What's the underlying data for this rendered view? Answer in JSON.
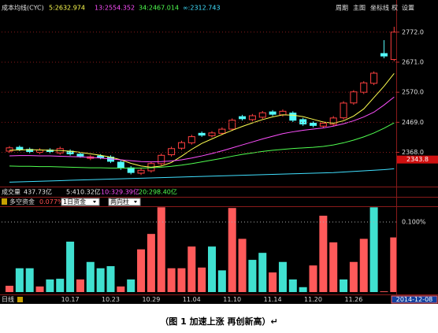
{
  "caption": "（图 1 加速上涨 再创新高）↵",
  "volume_row": {
    "title": "成交量",
    "items": [
      {
        "text": "437.73亿",
        "color": "#e8e8e8"
      },
      {
        "text": "5:410.32亿",
        "color": "#e8e8e8"
      },
      {
        "text": "10:329.39亿",
        "color": "#ff50ff"
      },
      {
        "text": "20:298.40亿",
        "color": "#50ff50"
      }
    ]
  },
  "chart_data": [
    {
      "type": "candlestick",
      "title": "成本均线(CYC)",
      "buttons": [
        "周期",
        "主图",
        "坐标线",
        "权",
        "设置"
      ],
      "open": [
        2372,
        2385,
        2378,
        2368,
        2376,
        2366,
        2372,
        2362,
        2348,
        2356,
        2352,
        2335,
        2316,
        2298,
        2306,
        2330,
        2360,
        2382,
        2400,
        2432,
        2424,
        2432,
        2446,
        2488,
        2478,
        2486,
        2504,
        2494,
        2500,
        2478,
        2466,
        2456,
        2462,
        2484,
        2534,
        2570,
        2600,
        2700,
        2680
      ],
      "high": [
        2389,
        2391,
        2384,
        2382,
        2382,
        2387,
        2378,
        2368,
        2359,
        2362,
        2358,
        2341,
        2322,
        2314,
        2336,
        2364,
        2387,
        2407,
        2427,
        2438,
        2439,
        2452,
        2482,
        2494,
        2497,
        2507,
        2510,
        2512,
        2506,
        2484,
        2472,
        2472,
        2490,
        2540,
        2577,
        2607,
        2640,
        2745,
        2790
      ],
      "low": [
        2366,
        2372,
        2365,
        2362,
        2365,
        2360,
        2357,
        2350,
        2342,
        2345,
        2332,
        2309,
        2294,
        2292,
        2300,
        2324,
        2354,
        2376,
        2394,
        2420,
        2418,
        2426,
        2440,
        2475,
        2472,
        2480,
        2490,
        2488,
        2470,
        2457,
        2452,
        2450,
        2456,
        2478,
        2528,
        2564,
        2594,
        2684,
        2674
      ],
      "close": [
        2383.1,
        2378.1,
        2370.6,
        2375.6,
        2370.6,
        2380.6,
        2363,
        2355.5,
        2353,
        2350.5,
        2337.9,
        2315.4,
        2300.3,
        2307.8,
        2330.4,
        2358,
        2380.6,
        2400.7,
        2420.7,
        2425.8,
        2433.3,
        2445.8,
        2475.9,
        2481,
        2491,
        2501,
        2496,
        2506,
        2475.9,
        2463.4,
        2458.4,
        2465.9,
        2483.5,
        2533.6,
        2571.3,
        2601.4,
        2634,
        2691.7,
        2772
      ],
      "up_color": "#ff4040",
      "down_color": "#54fcfc",
      "series": [
        {
          "name": "5:2632.974",
          "color": "#ffff50",
          "values": [
            2375,
            2376,
            2377,
            2376,
            2375,
            2374,
            2372,
            2368,
            2363,
            2358,
            2352,
            2343,
            2331,
            2322,
            2318,
            2322,
            2334,
            2355,
            2378,
            2398,
            2413,
            2428,
            2442,
            2455,
            2467,
            2478,
            2487,
            2494,
            2493,
            2488,
            2479,
            2470,
            2466,
            2474,
            2490,
            2514,
            2552,
            2590,
            2633
          ]
        },
        {
          "name": "13:2554.352",
          "color": "#ff50ff",
          "values": [
            2356,
            2357,
            2357,
            2356,
            2356,
            2355,
            2354,
            2353,
            2351,
            2349,
            2346,
            2343,
            2340,
            2337,
            2336,
            2337,
            2339,
            2343,
            2349,
            2356,
            2364,
            2373,
            2383,
            2393,
            2403,
            2413,
            2422,
            2431,
            2437,
            2442,
            2446,
            2450,
            2456,
            2464,
            2474,
            2487,
            2503,
            2527,
            2554
          ]
        },
        {
          "name": "34:2467.014",
          "color": "#50ff50",
          "values": [
            2322,
            2321,
            2321,
            2320,
            2320,
            2319,
            2318,
            2317,
            2316,
            2316,
            2315,
            2315,
            2315,
            2315,
            2316,
            2318,
            2321,
            2325,
            2330,
            2336,
            2342,
            2348,
            2355,
            2361,
            2366,
            2371,
            2375,
            2378,
            2381,
            2383,
            2385,
            2388,
            2393,
            2400,
            2409,
            2420,
            2433,
            2449,
            2467
          ]
        },
        {
          "name": "∞:2312.743",
          "color": "#40e0ff",
          "values": [
            2268,
            2269,
            2270,
            2271,
            2272,
            2273,
            2274,
            2275,
            2276,
            2277,
            2278,
            2279,
            2280,
            2281,
            2282,
            2283,
            2284,
            2285,
            2286,
            2287,
            2288,
            2289,
            2290,
            2291,
            2292,
            2293,
            2294,
            2295,
            2296,
            2297,
            2298,
            2299,
            2300,
            2302,
            2304,
            2306,
            2308,
            2310,
            2313
          ]
        }
      ],
      "ylim": [
        2253,
        2827
      ],
      "yticks": [
        {
          "value": 2368,
          "label": "2368.0"
        },
        {
          "value": 2469,
          "label": "2469.0"
        },
        {
          "value": 2570,
          "label": "2570.0"
        },
        {
          "value": 2671,
          "label": "2671.0"
        },
        {
          "value": 2772,
          "label": "2772.0"
        }
      ],
      "cursor_price": 2343.8,
      "grid": true
    },
    {
      "type": "bar",
      "title": "多空资金",
      "current": "0.077%",
      "dropdowns": [
        "1日资金",
        "两向柱"
      ],
      "period": "日线",
      "categories": [
        null,
        null,
        null,
        null,
        null,
        null,
        "10.17",
        null,
        null,
        null,
        "10.23",
        null,
        null,
        null,
        "10.29",
        null,
        null,
        null,
        "11.04",
        null,
        null,
        null,
        "11.10",
        null,
        null,
        null,
        "11.14",
        null,
        null,
        null,
        "11.20",
        null,
        null,
        null,
        "11.26",
        null,
        null,
        null,
        "2014-12-08"
      ],
      "values": [
        0.009,
        0.034,
        0.034,
        0.008,
        0.018,
        0.019,
        0.072,
        0.018,
        0.043,
        0.034,
        0.037,
        0.008,
        0.018,
        0.061,
        0.083,
        0.121,
        0.034,
        0.034,
        0.065,
        0.035,
        0.065,
        0.031,
        0.12,
        0.076,
        0.046,
        0.056,
        0.028,
        0.043,
        0.018,
        0.007,
        0.038,
        0.109,
        0.071,
        0.018,
        0.043,
        0.076,
        0.121,
        0.001,
        0.078
      ],
      "colors": [
        "#ff5a5a",
        "#40e0d0",
        "#40e0d0",
        "#ff5a5a",
        "#40e0d0",
        "#40e0d0",
        "#40e0d0",
        "#ff5a5a",
        "#40e0d0",
        "#40e0d0",
        "#40e0d0",
        "#ff5a5a",
        "#40e0d0",
        "#ff5a5a",
        "#ff5a5a",
        "#ff5a5a",
        "#ff5a5a",
        "#ff5a5a",
        "#ff5a5a",
        "#ff5a5a",
        "#40e0d0",
        "#40e0d0",
        "#ff5a5a",
        "#ff5a5a",
        "#40e0d0",
        "#40e0d0",
        "#ff5a5a",
        "#40e0d0",
        "#40e0d0",
        "#40e0d0",
        "#ff5a5a",
        "#ff5a5a",
        "#ff5a5a",
        "#40e0d0",
        "#ff5a5a",
        "#ff5a5a",
        "#40e0d0",
        "#ff5a5a",
        "#ff5a5a"
      ],
      "ylim": [
        0,
        0.1225
      ],
      "yticks": [
        {
          "value": 0.1,
          "label": "0.100%"
        }
      ]
    }
  ]
}
